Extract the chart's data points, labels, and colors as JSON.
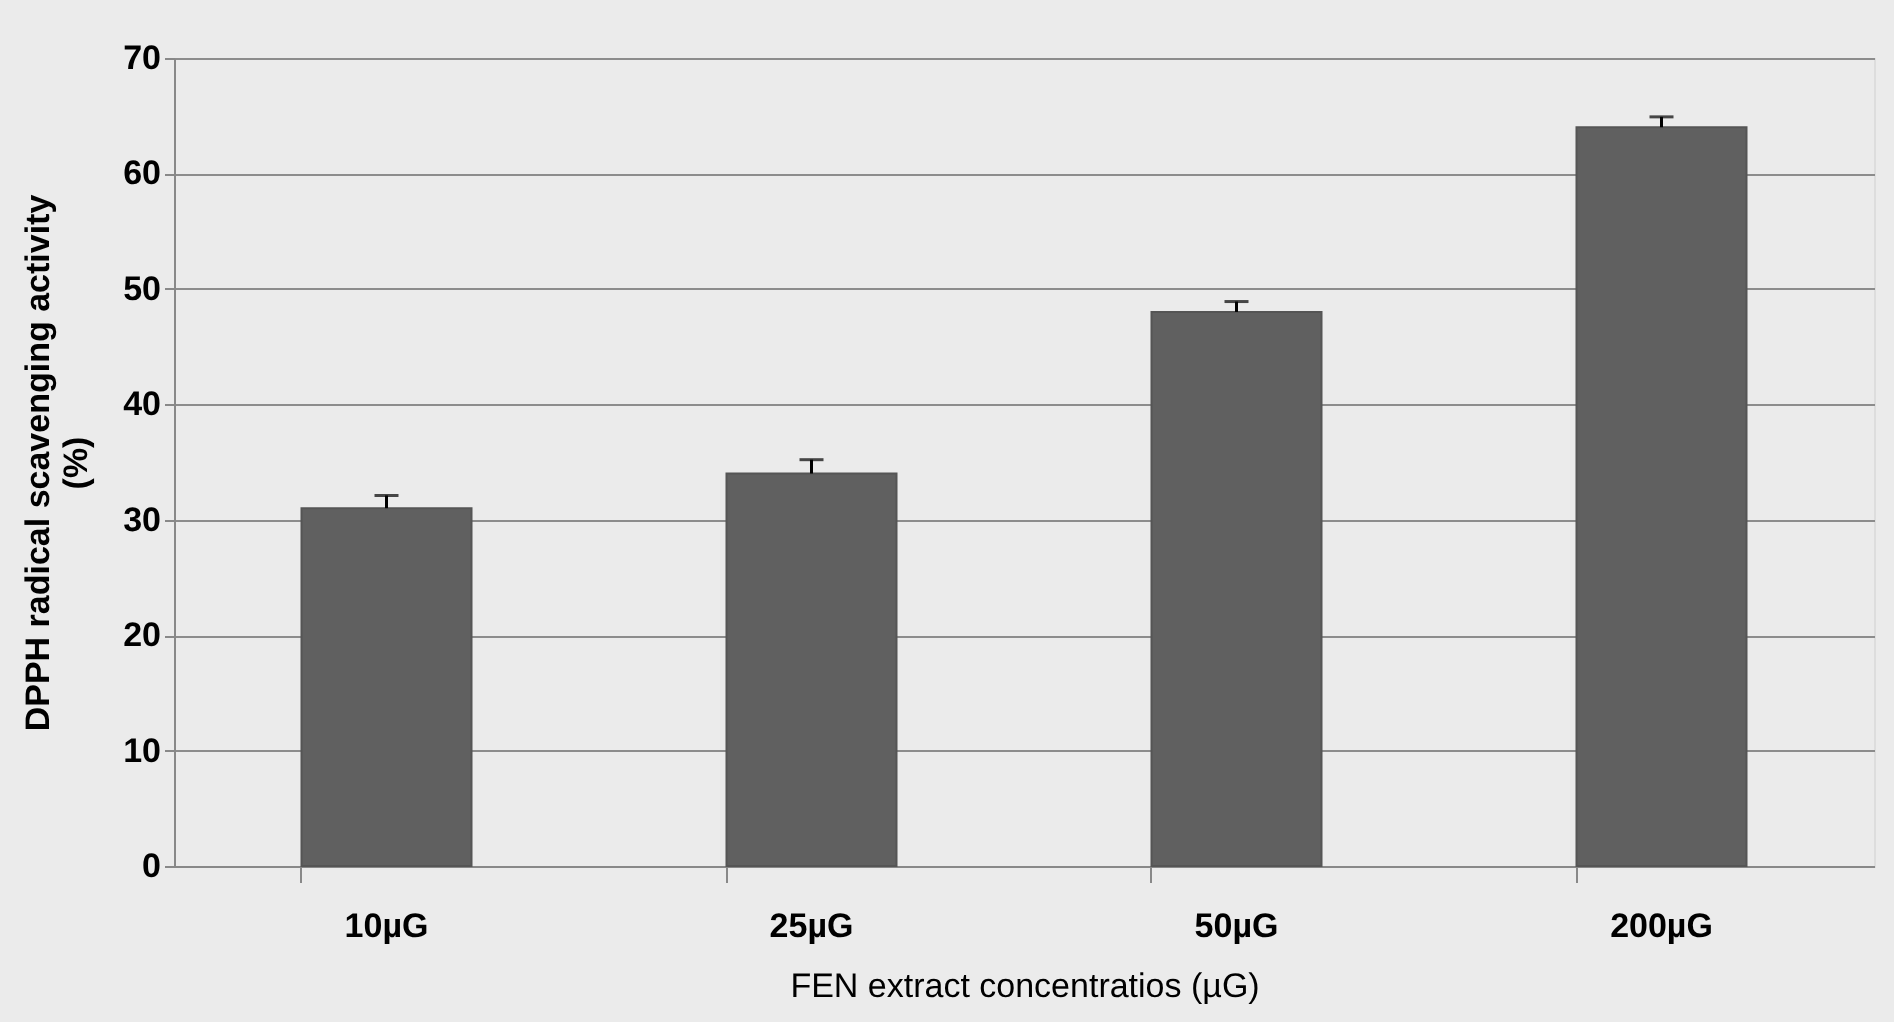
{
  "chart_data": {
    "type": "bar",
    "xlabel": "FEN extract concentratios (µG)",
    "ylabel": "DPPH radical scavenging activity (%)",
    "categories": [
      "10µG",
      "25µG",
      "50µG",
      "200µG"
    ],
    "values": [
      31,
      34,
      48,
      64
    ],
    "color": "#606060",
    "errors": [
      [
        31,
        32.1
      ],
      [
        34,
        35.2
      ],
      [
        48,
        48.9
      ],
      [
        64,
        64.9
      ]
    ],
    "ylim": [
      0,
      70
    ],
    "yticks": [
      0,
      10,
      20,
      30,
      40,
      50,
      60,
      70
    ],
    "grid": "y"
  }
}
